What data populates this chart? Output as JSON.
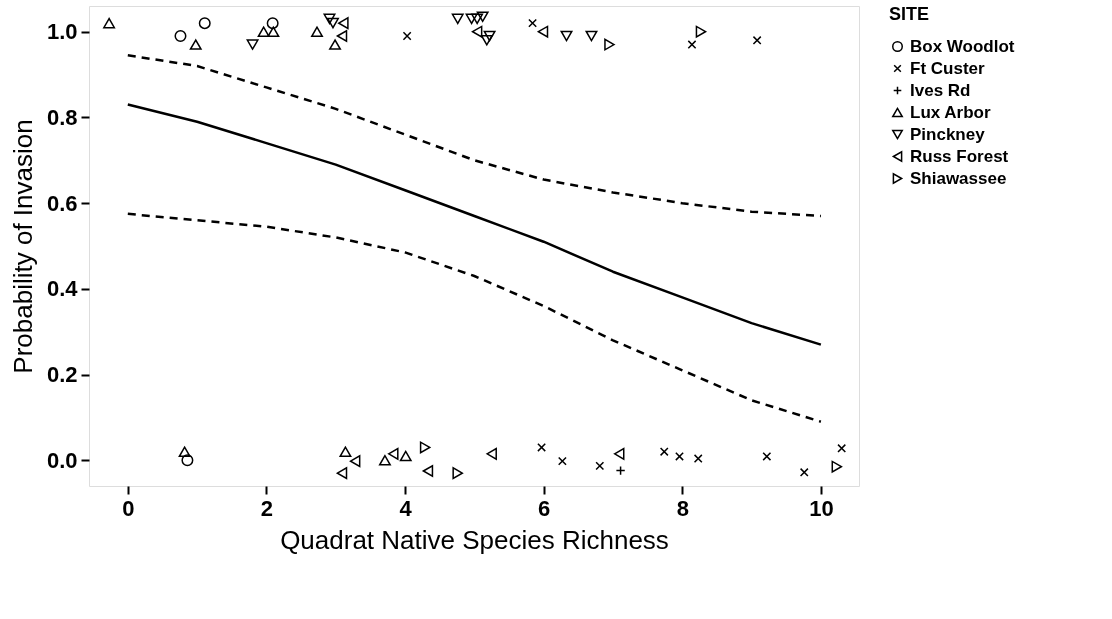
{
  "chart_data": {
    "type": "scatter",
    "xlabel": "Quadrat Native Species Richness",
    "ylabel": "Probability of Invasion",
    "legend_title": "SITE",
    "legend": "right",
    "grid": false,
    "xlim": [
      -0.56,
      10.55
    ],
    "ylim": [
      -0.06,
      1.06
    ],
    "xticks": [
      0,
      2,
      4,
      6,
      8,
      10
    ],
    "yticks": [
      {
        "value": 0,
        "label": "0.0"
      },
      {
        "value": 0.2,
        "label": "0.2"
      },
      {
        "value": 0.4,
        "label": "0.4"
      },
      {
        "value": 0.6,
        "label": "0.6"
      },
      {
        "value": 0.8,
        "label": "0.8"
      },
      {
        "value": 1,
        "label": "1.0"
      }
    ],
    "series": [
      {
        "name": "Box Woodlot",
        "color": "#000000",
        "marker": "circle",
        "x": [
          0.76,
          1.11,
          2.09,
          0.86
        ],
        "values": [
          0.99,
          1.02,
          1.02,
          0.0
        ]
      },
      {
        "name": "Ft Custer",
        "color": "#000000",
        "marker": "cross",
        "x": [
          4.03,
          5.84,
          8.14,
          9.08,
          5.97,
          6.27,
          6.81,
          7.74,
          7.96,
          8.23,
          9.22,
          9.76,
          10.3
        ],
        "values": [
          0.99,
          1.02,
          0.97,
          0.98,
          0.03,
          -0.002,
          -0.013,
          0.02,
          0.009,
          0.004,
          0.009,
          -0.028,
          0.028
        ]
      },
      {
        "name": "Ives Rd",
        "color": "#000000",
        "marker": "plus",
        "x": [
          7.11
        ],
        "values": [
          -0.024
        ]
      },
      {
        "name": "Lux Arbor",
        "color": "#000000",
        "marker": "triangle",
        "x": [
          -0.27,
          0.98,
          1.96,
          2.1,
          2.73,
          2.99,
          0.82,
          3.14,
          3.71,
          4.01
        ],
        "values": [
          1.02,
          0.97,
          1.0,
          1.0,
          1.0,
          0.97,
          0.02,
          0.02,
          0.0,
          0.01
        ]
      },
      {
        "name": "Pinckney",
        "color": "#000000",
        "marker": "triangle-down",
        "x": [
          1.8,
          2.91,
          2.96,
          4.76,
          4.96,
          5.04,
          5.12,
          5.22,
          5.18,
          6.33,
          6.69
        ],
        "values": [
          0.97,
          1.03,
          1.02,
          1.03,
          1.03,
          1.03,
          1.035,
          0.99,
          0.98,
          0.99,
          0.99
        ]
      },
      {
        "name": "Russ Forest",
        "color": "#000000",
        "marker": "triangle-left",
        "x": [
          3.11,
          3.09,
          5.04,
          5.99,
          3.28,
          3.09,
          3.83,
          4.33,
          5.25,
          7.09
        ],
        "values": [
          1.02,
          0.99,
          1.0,
          1.0,
          -0.002,
          -0.03,
          0.015,
          -0.025,
          0.015,
          0.015
        ]
      },
      {
        "name": "Shiawassee",
        "color": "#000000",
        "marker": "triangle-right",
        "x": [
          6.95,
          8.27,
          4.29,
          4.76,
          10.23
        ],
        "values": [
          0.97,
          1.0,
          0.03,
          -0.03,
          -0.015
        ]
      },
      {
        "type": "line",
        "line_style": "solid",
        "color": "#000000",
        "x": [
          0,
          1,
          2,
          3,
          4,
          5,
          6,
          7,
          8,
          9,
          10
        ],
        "values": [
          0.83,
          0.79,
          0.74,
          0.69,
          0.63,
          0.57,
          0.51,
          0.44,
          0.38,
          0.32,
          0.27
        ]
      },
      {
        "type": "line",
        "line_style": "dashed",
        "color": "#000000",
        "x": [
          0,
          1,
          2,
          3,
          4,
          5,
          6,
          7,
          8,
          9,
          10
        ],
        "values": [
          0.945,
          0.92,
          0.87,
          0.82,
          0.76,
          0.7,
          0.655,
          0.625,
          0.6,
          0.58,
          0.57
        ]
      },
      {
        "type": "line",
        "line_style": "dashed",
        "color": "#000000",
        "x": [
          0,
          1,
          2,
          3,
          4,
          5,
          6,
          7,
          8,
          9,
          10
        ],
        "values": [
          0.575,
          0.56,
          0.545,
          0.52,
          0.485,
          0.43,
          0.36,
          0.28,
          0.21,
          0.14,
          0.09
        ]
      }
    ]
  }
}
